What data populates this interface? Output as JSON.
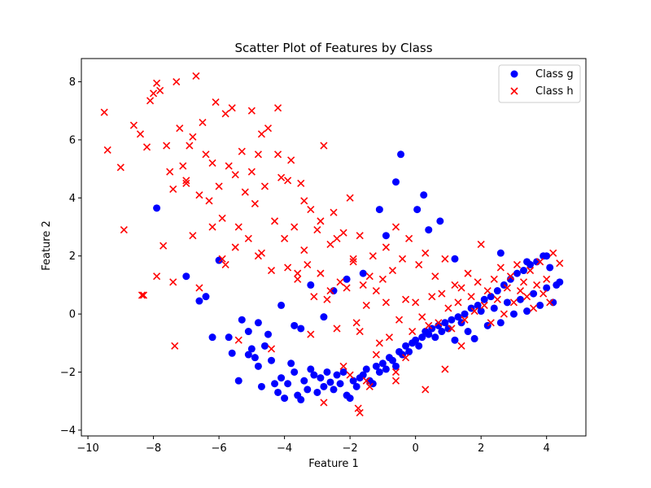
{
  "chart_data": {
    "type": "scatter",
    "title": "Scatter Plot of Features by Class",
    "xlabel": "Feature 1",
    "ylabel": "Feature 2",
    "xlim": [
      -10.2,
      5.2
    ],
    "ylim": [
      -4.2,
      8.8
    ],
    "xticks": [
      -10,
      -8,
      -6,
      -4,
      -2,
      0,
      2,
      4
    ],
    "yticks": [
      -4,
      -2,
      0,
      2,
      4,
      6,
      8
    ],
    "grid": false,
    "legend_position": "top-right",
    "series": [
      {
        "name": "Class g",
        "marker": "circle",
        "color": "#0000ff",
        "x": [
          -7.9,
          -7.0,
          -6.6,
          -6.4,
          -6.2,
          -6.0,
          -5.7,
          -5.6,
          -5.4,
          -5.3,
          -5.1,
          -5.0,
          -4.9,
          -4.8,
          -4.7,
          -4.6,
          -4.5,
          -4.4,
          -4.3,
          -4.2,
          -4.1,
          -4.0,
          -3.9,
          -3.8,
          -3.7,
          -3.6,
          -3.5,
          -3.4,
          -3.3,
          -3.2,
          -3.1,
          -3.0,
          -2.9,
          -2.8,
          -2.7,
          -2.6,
          -2.5,
          -2.4,
          -2.3,
          -2.2,
          -2.1,
          -2.0,
          -1.9,
          -1.8,
          -1.7,
          -1.6,
          -1.5,
          -1.4,
          -1.3,
          -1.2,
          -1.1,
          -1.0,
          -0.9,
          -0.8,
          -0.7,
          -0.6,
          -0.5,
          -0.4,
          -0.3,
          -0.2,
          -0.1,
          0.0,
          0.1,
          0.2,
          0.3,
          0.4,
          0.5,
          0.6,
          0.7,
          0.8,
          0.9,
          1.0,
          1.1,
          1.2,
          1.3,
          1.4,
          1.5,
          1.6,
          1.7,
          1.8,
          1.9,
          2.0,
          2.1,
          2.2,
          2.3,
          2.4,
          2.5,
          2.6,
          2.7,
          2.8,
          2.9,
          3.0,
          3.1,
          3.2,
          3.3,
          3.4,
          3.5,
          3.6,
          3.7,
          3.8,
          3.9,
          4.0,
          4.1,
          4.2,
          4.4,
          -0.45,
          -0.6,
          0.25,
          0.05,
          0.75,
          -1.1,
          -3.7,
          -4.8,
          -5.1,
          -2.1,
          -2.5,
          -3.2,
          -4.1,
          -3.5,
          -2.8,
          -1.6,
          -0.9,
          0.4,
          1.2,
          2.6,
          3.4,
          4.0,
          4.3
        ],
        "y": [
          3.65,
          1.3,
          0.45,
          0.6,
          -0.8,
          1.85,
          -0.8,
          -1.35,
          -2.3,
          -0.2,
          -0.6,
          -1.2,
          -1.5,
          -1.8,
          -2.5,
          -1.1,
          -0.7,
          -1.6,
          -2.4,
          -2.7,
          -2.2,
          -2.9,
          -2.4,
          -1.7,
          -2.0,
          -2.8,
          -2.95,
          -2.3,
          -2.6,
          -1.9,
          -2.1,
          -2.7,
          -2.2,
          -2.5,
          -2.0,
          -2.35,
          -2.6,
          -2.1,
          -2.4,
          -2.0,
          -2.8,
          -2.9,
          -2.3,
          -2.5,
          -2.2,
          -2.1,
          -1.9,
          -2.3,
          -2.4,
          -1.8,
          -2.0,
          -1.7,
          -1.9,
          -1.5,
          -1.6,
          -1.8,
          -1.3,
          -1.4,
          -1.1,
          -1.3,
          -1.0,
          -0.9,
          -1.1,
          -0.8,
          -0.6,
          -0.7,
          -0.5,
          -0.8,
          -0.4,
          -0.6,
          -0.3,
          -0.5,
          -0.2,
          -0.9,
          -0.1,
          -0.3,
          0.0,
          -0.6,
          0.2,
          -0.85,
          0.3,
          0.1,
          0.5,
          -0.4,
          0.6,
          0.2,
          0.8,
          -0.3,
          1.0,
          0.4,
          1.2,
          0.0,
          1.4,
          0.5,
          1.5,
          0.1,
          1.7,
          0.7,
          1.8,
          0.3,
          2.0,
          0.9,
          1.6,
          0.4,
          1.1,
          5.5,
          4.55,
          4.1,
          3.6,
          3.2,
          3.6,
          -0.4,
          -0.3,
          -1.4,
          1.2,
          0.8,
          1.0,
          0.3,
          -0.5,
          -0.1,
          1.4,
          2.7,
          2.9,
          1.9,
          2.1,
          1.8,
          2.0,
          1.0
        ]
      },
      {
        "name": "Class h",
        "marker": "x",
        "color": "#ff0000",
        "x": [
          -9.5,
          -9.4,
          -9.0,
          -8.9,
          -8.6,
          -8.4,
          -8.3,
          -8.2,
          -8.1,
          -8.0,
          -7.9,
          -7.8,
          -7.7,
          -7.6,
          -7.5,
          -7.4,
          -7.3,
          -7.2,
          -7.1,
          -7.0,
          -6.9,
          -6.8,
          -6.7,
          -6.6,
          -6.5,
          -6.4,
          -6.3,
          -6.2,
          -6.1,
          -6.0,
          -5.9,
          -5.8,
          -5.7,
          -5.6,
          -5.5,
          -5.4,
          -5.3,
          -5.2,
          -5.1,
          -5.0,
          -4.9,
          -4.8,
          -4.7,
          -4.6,
          -4.5,
          -4.4,
          -4.3,
          -4.2,
          -4.1,
          -4.0,
          -3.9,
          -3.8,
          -3.7,
          -3.6,
          -3.5,
          -3.4,
          -3.3,
          -3.2,
          -3.1,
          -3.0,
          -2.9,
          -2.8,
          -2.7,
          -2.6,
          -2.5,
          -2.4,
          -2.3,
          -2.2,
          -2.1,
          -2.0,
          -1.9,
          -1.8,
          -1.7,
          -1.6,
          -1.5,
          -1.4,
          -1.3,
          -1.2,
          -1.1,
          -1.0,
          -0.9,
          -0.8,
          -0.7,
          -0.6,
          -0.5,
          -0.4,
          -0.3,
          -0.2,
          -0.1,
          0.0,
          0.1,
          0.2,
          0.3,
          0.4,
          0.5,
          0.6,
          0.7,
          0.8,
          0.9,
          1.0,
          1.1,
          1.2,
          1.3,
          1.4,
          1.5,
          1.6,
          1.7,
          1.8,
          1.9,
          2.0,
          2.1,
          2.2,
          2.3,
          2.4,
          2.5,
          2.6,
          2.7,
          2.8,
          2.9,
          3.0,
          3.1,
          3.2,
          3.3,
          3.4,
          3.5,
          3.6,
          3.7,
          3.8,
          3.9,
          4.0,
          4.1,
          4.2,
          4.4,
          -7.0,
          -6.8,
          -7.4,
          -7.9,
          -6.6,
          -5.9,
          -5.5,
          -5.0,
          -4.7,
          -4.2,
          -3.9,
          -3.4,
          -2.9,
          -2.4,
          -1.9,
          -1.4,
          -0.9,
          -6.2,
          -5.8,
          -4.8,
          -3.6,
          -2.6,
          -1.7,
          -1.2,
          -0.6,
          -5.4,
          -4.4,
          -3.2,
          -2.2,
          -1.5,
          -0.3,
          0.3,
          0.9,
          1.4,
          -7.35,
          -8.35,
          -1.7,
          -1.75,
          -2.8,
          -0.6,
          -2.0
        ],
        "y": [
          6.95,
          5.65,
          5.05,
          2.9,
          6.5,
          6.2,
          0.65,
          5.75,
          7.35,
          7.6,
          7.95,
          7.7,
          2.35,
          5.8,
          4.9,
          4.3,
          8.0,
          6.4,
          5.1,
          4.6,
          5.8,
          6.1,
          8.2,
          4.1,
          6.6,
          5.5,
          3.9,
          5.2,
          7.3,
          4.4,
          3.3,
          6.9,
          5.1,
          7.1,
          4.8,
          3.0,
          5.6,
          4.2,
          2.6,
          7.0,
          3.8,
          5.5,
          2.1,
          4.4,
          6.4,
          1.5,
          3.2,
          7.1,
          4.7,
          2.6,
          1.6,
          5.3,
          3.0,
          1.2,
          4.5,
          2.2,
          1.7,
          3.6,
          0.6,
          2.9,
          1.4,
          5.8,
          0.5,
          2.4,
          3.5,
          -0.5,
          1.1,
          2.8,
          0.9,
          4.0,
          1.8,
          -0.3,
          2.7,
          1.0,
          0.3,
          -2.5,
          2.0,
          0.8,
          -1.0,
          1.2,
          2.3,
          -0.8,
          1.5,
          3.0,
          -0.2,
          1.9,
          0.5,
          2.6,
          -0.6,
          0.4,
          1.7,
          -0.1,
          2.1,
          -0.4,
          0.6,
          1.3,
          -0.3,
          0.7,
          1.9,
          0.2,
          -0.5,
          1.0,
          0.4,
          0.9,
          -0.2,
          1.4,
          0.6,
          0.1,
          1.1,
          2.4,
          0.3,
          0.8,
          -0.3,
          1.2,
          0.5,
          1.6,
          0.0,
          0.9,
          1.3,
          0.4,
          1.7,
          0.8,
          1.1,
          0.6,
          1.5,
          0.2,
          1.0,
          1.8,
          0.7,
          1.2,
          0.4,
          2.1,
          1.75,
          4.5,
          2.7,
          1.1,
          1.3,
          0.9,
          1.9,
          2.3,
          4.9,
          6.2,
          5.5,
          4.6,
          3.9,
          3.2,
          2.6,
          1.9,
          1.3,
          0.4,
          3.0,
          1.7,
          2.0,
          1.4,
          0.8,
          -0.6,
          -1.4,
          -2.0,
          -0.9,
          -1.2,
          -0.7,
          -1.8,
          -2.3,
          -1.5,
          -2.6,
          -1.9,
          -1.1,
          -1.1,
          0.65,
          -3.4,
          -3.25,
          -3.05,
          -2.3,
          -2.1
        ]
      }
    ]
  }
}
